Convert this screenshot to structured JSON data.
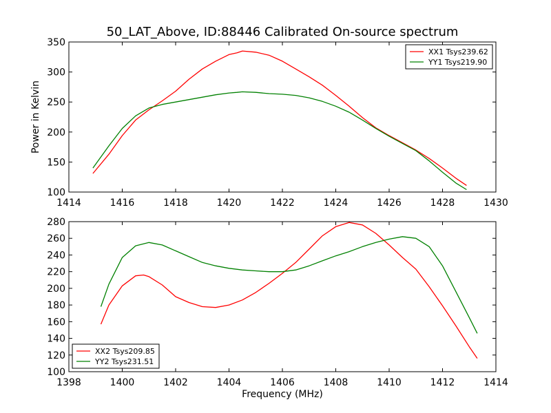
{
  "title": "50_LAT_Above, ID:88446 Calibrated On-source spectrum",
  "chart_data": [
    {
      "type": "line",
      "xlabel": "",
      "ylabel": "Power in Kelvin",
      "xlim": [
        1414,
        1430
      ],
      "ylim": [
        100,
        350
      ],
      "xticks": [
        1414,
        1416,
        1418,
        1420,
        1422,
        1424,
        1426,
        1428,
        1430
      ],
      "yticks": [
        100,
        150,
        200,
        250,
        300,
        350
      ],
      "legend": "top-right",
      "series": [
        {
          "name": "XX1 Tsys239.62",
          "color": "#ff0000",
          "x": [
            1414.9,
            1415.5,
            1416,
            1416.5,
            1417,
            1417.5,
            1418,
            1418.5,
            1419,
            1419.5,
            1420,
            1420.3,
            1420.5,
            1421,
            1421.5,
            1422,
            1422.5,
            1423,
            1423.5,
            1424,
            1424.5,
            1425,
            1425.5,
            1426,
            1426.5,
            1427,
            1427.5,
            1428,
            1428.5,
            1428.9
          ],
          "y": [
            131,
            163,
            194,
            220,
            237,
            252,
            268,
            288,
            305,
            318,
            329,
            332,
            335,
            333,
            328,
            318,
            305,
            292,
            278,
            261,
            243,
            224,
            207,
            194,
            182,
            170,
            156,
            140,
            123,
            111
          ]
        },
        {
          "name": "YY1 Tsys219.90",
          "color": "#008000",
          "x": [
            1414.9,
            1415.5,
            1416,
            1416.5,
            1417,
            1417.5,
            1418,
            1418.5,
            1419,
            1419.5,
            1420,
            1420.3,
            1420.5,
            1421,
            1421.5,
            1422,
            1422.5,
            1423,
            1423.5,
            1424,
            1424.5,
            1425,
            1425.5,
            1426,
            1426.5,
            1427,
            1427.5,
            1428,
            1428.5,
            1428.9
          ],
          "y": [
            140,
            177,
            206,
            227,
            240,
            246,
            250,
            254,
            258,
            262,
            265,
            266,
            267,
            266,
            264,
            263,
            261,
            257,
            251,
            243,
            233,
            220,
            206,
            193,
            181,
            169,
            152,
            133,
            115,
            104
          ]
        }
      ]
    },
    {
      "type": "line",
      "xlabel": "Frequency (MHz)",
      "ylabel": "",
      "xlim": [
        1398,
        1414
      ],
      "ylim": [
        100,
        280
      ],
      "xticks": [
        1398,
        1400,
        1402,
        1404,
        1406,
        1408,
        1410,
        1412,
        1414
      ],
      "yticks": [
        100,
        120,
        140,
        160,
        180,
        200,
        220,
        240,
        260,
        280
      ],
      "legend": "bottom-left",
      "series": [
        {
          "name": "XX2 Tsys209.85",
          "color": "#ff0000",
          "x": [
            1399.2,
            1399.5,
            1400,
            1400.5,
            1400.8,
            1401,
            1401.5,
            1402,
            1402.5,
            1403,
            1403.5,
            1404,
            1404.5,
            1405,
            1405.5,
            1406,
            1406.5,
            1407,
            1407.5,
            1408,
            1408.5,
            1409,
            1409.5,
            1410,
            1410.5,
            1411,
            1411.5,
            1412,
            1412.5,
            1413,
            1413.3
          ],
          "y": [
            157,
            180,
            203,
            215,
            216,
            214,
            204,
            190,
            183,
            178,
            177,
            180,
            186,
            195,
            206,
            218,
            231,
            247,
            263,
            274,
            279,
            276,
            266,
            252,
            237,
            223,
            202,
            179,
            155,
            130,
            116
          ]
        },
        {
          "name": "YY2 Tsys231.51",
          "color": "#008000",
          "x": [
            1399.2,
            1399.5,
            1400,
            1400.5,
            1401,
            1401.5,
            1402,
            1402.5,
            1403,
            1403.5,
            1404,
            1404.5,
            1405,
            1405.5,
            1406,
            1406.5,
            1407,
            1407.5,
            1408,
            1408.5,
            1409,
            1409.5,
            1410,
            1410.5,
            1411,
            1411.5,
            1412,
            1412.5,
            1413,
            1413.3
          ],
          "y": [
            178,
            205,
            237,
            251,
            255,
            252,
            245,
            238,
            231,
            227,
            224,
            222,
            221,
            220,
            220,
            222,
            227,
            233,
            239,
            244,
            250,
            255,
            259,
            262,
            260,
            250,
            227,
            196,
            165,
            146
          ]
        }
      ]
    }
  ]
}
